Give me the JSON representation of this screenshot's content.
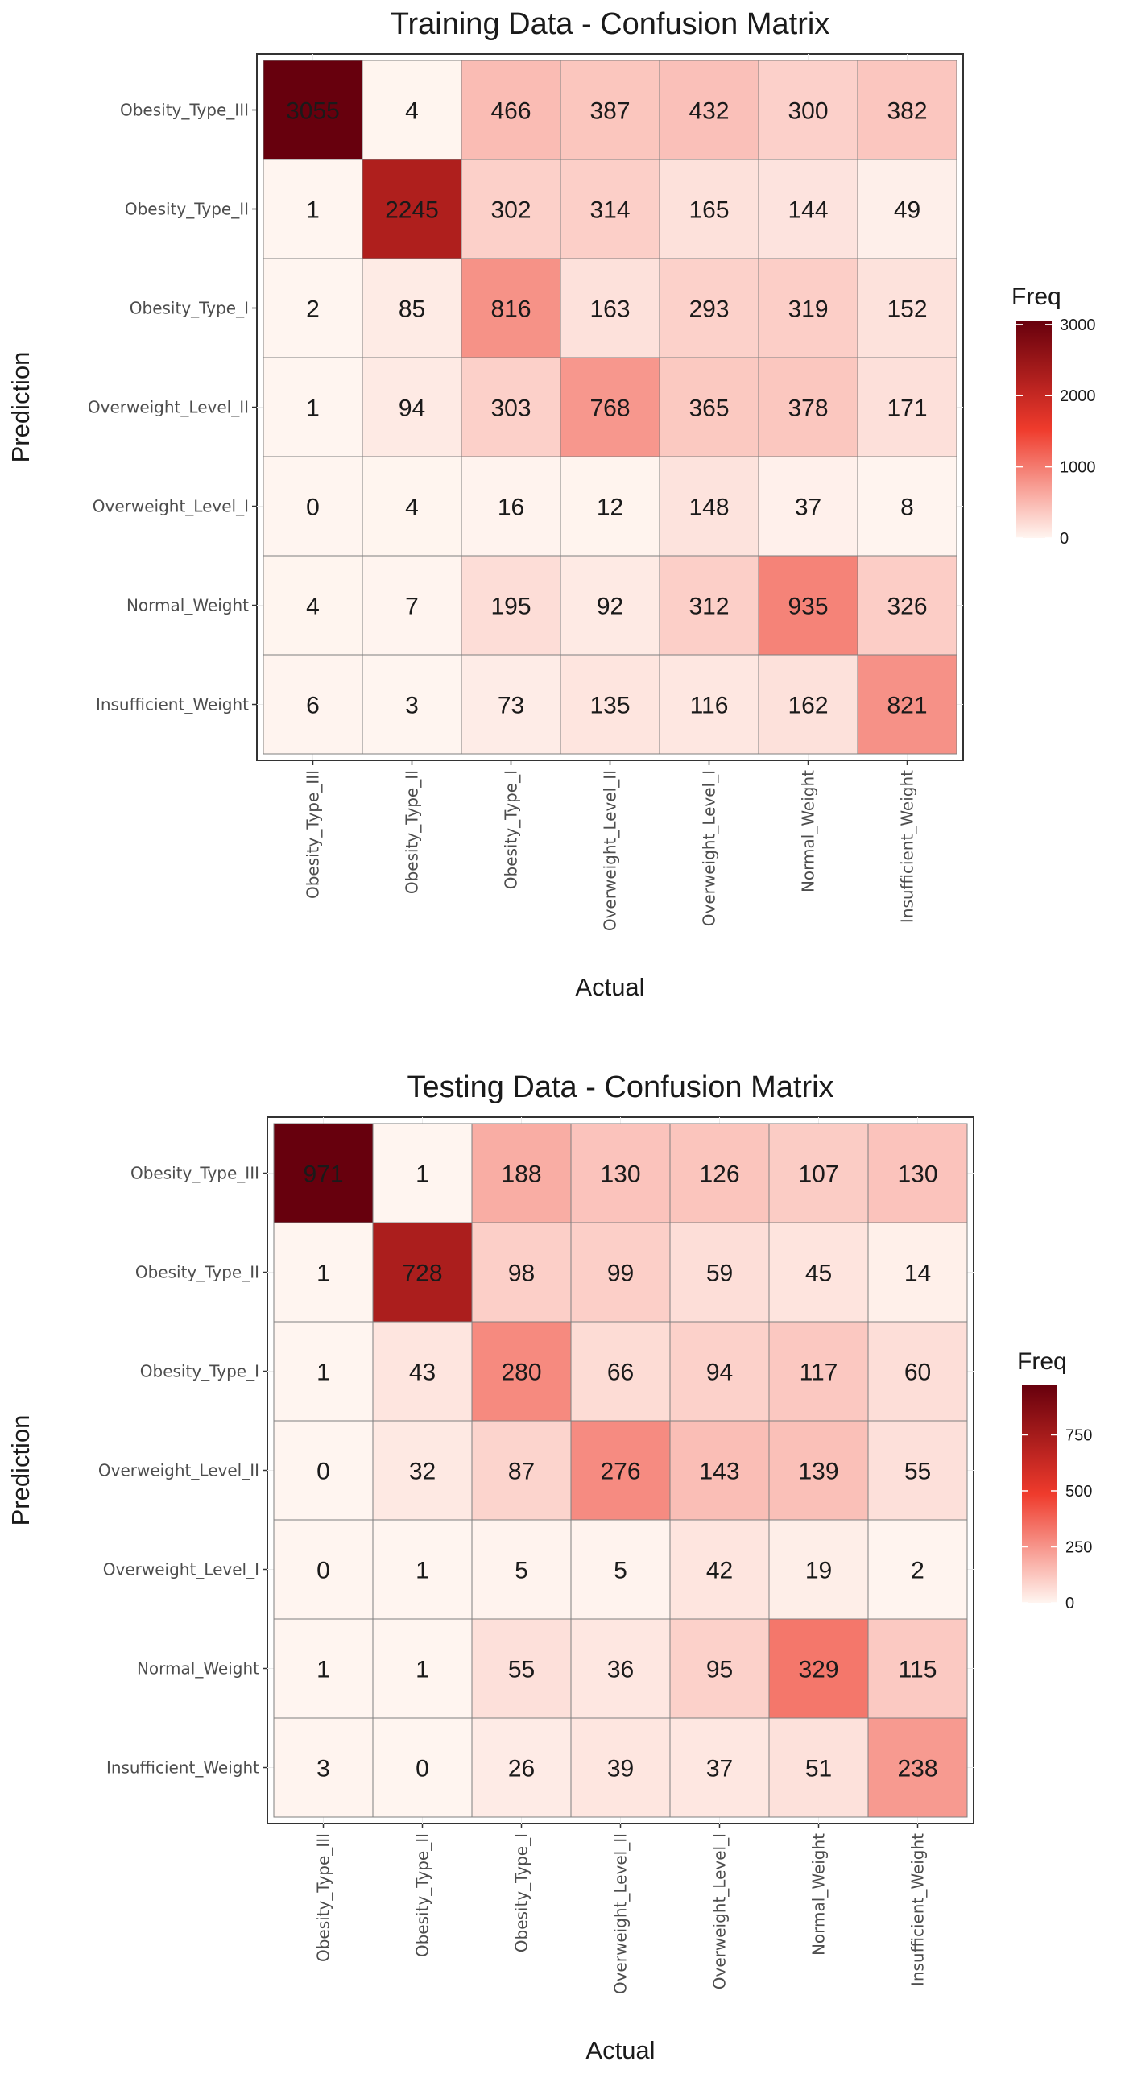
{
  "chart_data": [
    {
      "type": "heatmap",
      "title": "Training Data - Confusion Matrix",
      "xlabel": "Actual",
      "ylabel": "Prediction",
      "x_categories": [
        "Obesity_Type_III",
        "Obesity_Type_II",
        "Obesity_Type_I",
        "Overweight_Level_II",
        "Overweight_Level_I",
        "Normal_Weight",
        "Insufficient_Weight"
      ],
      "y_categories": [
        "Obesity_Type_III",
        "Obesity_Type_II",
        "Obesity_Type_I",
        "Overweight_Level_II",
        "Overweight_Level_I",
        "Normal_Weight",
        "Insufficient_Weight"
      ],
      "values": [
        [
          3055,
          4,
          466,
          387,
          432,
          300,
          382
        ],
        [
          1,
          2245,
          302,
          314,
          165,
          144,
          49
        ],
        [
          2,
          85,
          816,
          163,
          293,
          319,
          152
        ],
        [
          1,
          94,
          303,
          768,
          365,
          378,
          171
        ],
        [
          0,
          4,
          16,
          12,
          148,
          37,
          8
        ],
        [
          4,
          7,
          195,
          92,
          312,
          935,
          326
        ],
        [
          6,
          3,
          73,
          135,
          116,
          162,
          821
        ]
      ],
      "legend": {
        "title": "Freq",
        "ticks": [
          0,
          1000,
          2000,
          3000
        ],
        "tick_labels": [
          "0",
          "1000",
          "2000",
          "3000"
        ],
        "range": [
          0,
          3055
        ],
        "placement": "right"
      },
      "grid": true,
      "colors": {
        "low": "#fff5f0",
        "mid": "#ef3b2c",
        "high": "#67000d"
      }
    },
    {
      "type": "heatmap",
      "title": "Testing Data - Confusion Matrix",
      "xlabel": "Actual",
      "ylabel": "Prediction",
      "x_categories": [
        "Obesity_Type_III",
        "Obesity_Type_II",
        "Obesity_Type_I",
        "Overweight_Level_II",
        "Overweight_Level_I",
        "Normal_Weight",
        "Insufficient_Weight"
      ],
      "y_categories": [
        "Obesity_Type_III",
        "Obesity_Type_II",
        "Obesity_Type_I",
        "Overweight_Level_II",
        "Overweight_Level_I",
        "Normal_Weight",
        "Insufficient_Weight"
      ],
      "values": [
        [
          971,
          1,
          188,
          130,
          126,
          107,
          130
        ],
        [
          1,
          728,
          98,
          99,
          59,
          45,
          14
        ],
        [
          1,
          43,
          280,
          66,
          94,
          117,
          60
        ],
        [
          0,
          32,
          87,
          276,
          143,
          139,
          55
        ],
        [
          0,
          1,
          5,
          5,
          42,
          19,
          2
        ],
        [
          1,
          1,
          55,
          36,
          95,
          329,
          115
        ],
        [
          3,
          0,
          26,
          39,
          37,
          51,
          238
        ]
      ],
      "legend": {
        "title": "Freq",
        "ticks": [
          0,
          250,
          500,
          750
        ],
        "tick_labels": [
          "0",
          "250",
          "500",
          "750"
        ],
        "range": [
          0,
          971
        ],
        "placement": "right"
      },
      "grid": true,
      "colors": {
        "low": "#fff5f0",
        "mid": "#ef3b2c",
        "high": "#67000d"
      }
    }
  ]
}
